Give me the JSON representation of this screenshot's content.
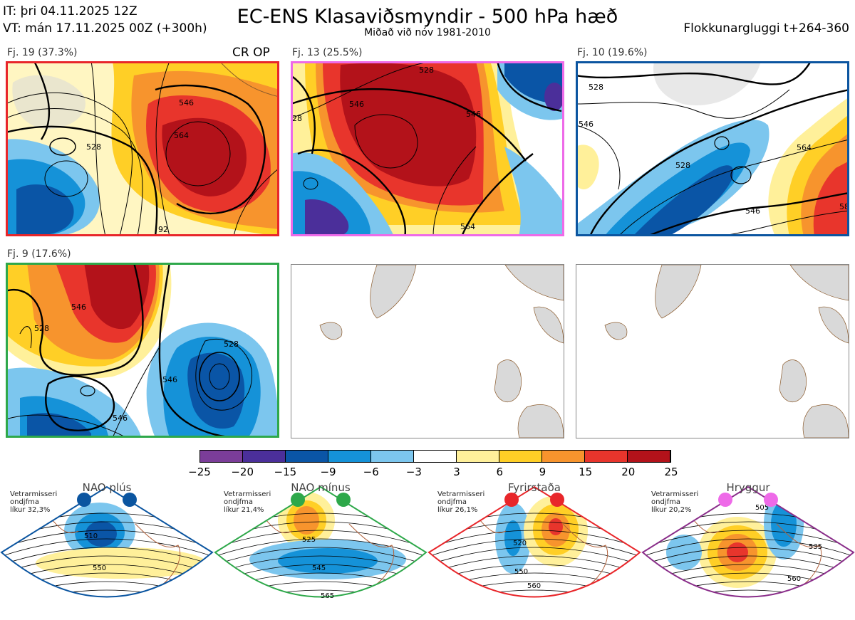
{
  "header": {
    "it": "IT: þri 04.11.2025 12Z",
    "vt": "VT: mán 17.11.2025 00Z  (+300h)",
    "title": "EC-ENS Klasaviðsmyndir - 500 hPa hæð",
    "subtitle": "Miðað við nóv 1981-2010",
    "window": "Flokkunargluggi t+264-360"
  },
  "panels": [
    {
      "label": "Fj. 19 (37.3%)",
      "border": "#e8262a",
      "extra": "CR OP",
      "contours": [
        "528",
        "546",
        "564",
        "92"
      ]
    },
    {
      "label": "Fj. 13 (25.5%)",
      "border": "#ee6ae8",
      "contours": [
        "528",
        "546",
        "546",
        "564",
        "28"
      ]
    },
    {
      "label": "Fj. 10 (19.6%)",
      "border": "#0b55a0",
      "contours": [
        "528",
        "528",
        "546",
        "546",
        "564",
        "58"
      ]
    },
    {
      "label": "Fj. 9 (17.6%)",
      "border": "#2ea84a",
      "contours": [
        "546",
        "528",
        "528",
        "546",
        "546"
      ]
    }
  ],
  "chart_data": {
    "type": "heatmap",
    "title": "EC-ENS Klasaviðsmyndir - 500 hPa hæð",
    "subtitle": "Miðað við nóv 1981-2010",
    "colorbar": {
      "ticks": [
        "−25",
        "−20",
        "−15",
        "−9",
        "−6",
        "−3",
        "3",
        "6",
        "9",
        "15",
        "20",
        "25"
      ],
      "bins": [
        -25,
        -20,
        -15,
        -9,
        -6,
        -3,
        3,
        6,
        9,
        15,
        20,
        25
      ],
      "colors": [
        "#7b3d99",
        "#4b2f9a",
        "#0a55a6",
        "#1592d8",
        "#7cc6ee",
        "#ffffff",
        "#fff09a",
        "#ffcf26",
        "#f7942d",
        "#e8352c",
        "#b3121a"
      ]
    },
    "clusters": [
      {
        "name": "Fj. 19",
        "percent": 37.3
      },
      {
        "name": "Fj. 13",
        "percent": 25.5
      },
      {
        "name": "Fj. 10",
        "percent": 19.6
      },
      {
        "name": "Fj. 9",
        "percent": 17.6
      }
    ]
  },
  "regimes": [
    {
      "title": "NAO plús",
      "note": [
        "Vetrarmisseri",
        "ondjfma",
        "líkur 32,3%"
      ],
      "dot": "#0b55a0",
      "border": "#0b55a0",
      "contours": [
        "510",
        "550"
      ]
    },
    {
      "title": "NAO mínus",
      "note": [
        "Vetrarmisseri",
        "ondjfma",
        "líkur 21,4%"
      ],
      "dot": "#2ea84a",
      "border": "#2ea84a",
      "contours": [
        "525",
        "545",
        "565"
      ]
    },
    {
      "title": "Fyrirstaða",
      "note": [
        "Vetrarmisseri",
        "ondjfma",
        "líkur 26,1%"
      ],
      "dot": "#e8262a",
      "border": "#e8262a",
      "contours": [
        "520",
        "550",
        "560"
      ]
    },
    {
      "title": "Hryggur",
      "note": [
        "Vetrarmisseri",
        "ondjfma",
        "líkur 20,2%"
      ],
      "dot": "#ee6ae8",
      "border": "#8a2e8a",
      "contours": [
        "505",
        "535",
        "560"
      ]
    }
  ]
}
